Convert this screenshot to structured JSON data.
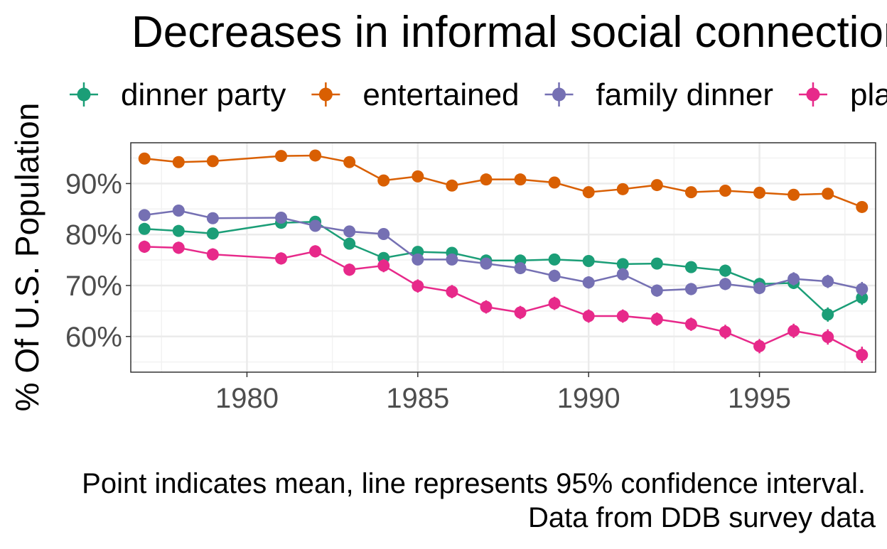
{
  "chart_data": {
    "type": "line",
    "title": "Decreases in informal social connections",
    "xlabel": "",
    "ylabel": "% Of U.S. Population",
    "caption": "Point indicates mean, line represents 95% confidence interval.",
    "caption_line2": "Data from DDB survey data",
    "xlim": [
      1976.6,
      1998.4
    ],
    "ylim": [
      53,
      98
    ],
    "x_ticks": [
      1980,
      1985,
      1990,
      1995
    ],
    "y_ticks": [
      60,
      70,
      80,
      90
    ],
    "y_tick_format": "percent",
    "grid": true,
    "legend_position": "top",
    "x": [
      1977,
      1978,
      1979,
      1981,
      1982,
      1983,
      1984,
      1985,
      1986,
      1987,
      1988,
      1989,
      1990,
      1991,
      1992,
      1993,
      1994,
      1995,
      1996,
      1997,
      1998
    ],
    "series": [
      {
        "name": "dinner party",
        "color": "#1b9e77",
        "values": [
          81.1,
          80.7,
          80.2,
          82.3,
          82.5,
          78.2,
          75.4,
          76.6,
          76.4,
          74.9,
          74.9,
          75.1,
          74.8,
          74.2,
          74.3,
          73.6,
          72.9,
          70.3,
          70.5,
          64.3,
          67.6
        ],
        "ci": [
          1.0,
          1.0,
          1.0,
          1.0,
          1.0,
          1.1,
          1.1,
          1.1,
          1.1,
          1.1,
          1.1,
          1.1,
          1.1,
          1.1,
          1.1,
          1.1,
          1.2,
          1.2,
          1.2,
          1.4,
          1.4
        ]
      },
      {
        "name": "entertained",
        "color": "#d95f02",
        "values": [
          94.9,
          94.2,
          94.4,
          95.4,
          95.5,
          94.2,
          90.6,
          91.4,
          89.6,
          90.8,
          90.8,
          90.2,
          88.3,
          88.9,
          89.7,
          88.3,
          88.6,
          88.2,
          87.8,
          88.0,
          85.4
        ],
        "ci": [
          0.6,
          0.6,
          0.6,
          0.6,
          0.6,
          0.6,
          0.7,
          0.7,
          0.7,
          0.7,
          0.7,
          0.7,
          0.8,
          0.8,
          0.8,
          0.8,
          0.8,
          0.8,
          0.8,
          0.8,
          0.9
        ]
      },
      {
        "name": "family dinner",
        "color": "#7570b3",
        "values": [
          83.8,
          84.7,
          83.2,
          83.3,
          81.7,
          80.6,
          80.1,
          75.1,
          75.1,
          74.3,
          73.4,
          71.9,
          70.6,
          72.2,
          69.0,
          69.3,
          70.3,
          69.5,
          71.3,
          70.8,
          69.3
        ],
        "ci": [
          1.0,
          1.0,
          1.0,
          1.0,
          1.0,
          1.0,
          1.1,
          1.1,
          1.1,
          1.1,
          1.1,
          1.2,
          1.2,
          1.2,
          1.2,
          1.2,
          1.2,
          1.2,
          1.3,
          1.3,
          1.4
        ]
      },
      {
        "name": "played cards",
        "color": "#e7298a",
        "values": [
          77.6,
          77.4,
          76.1,
          75.3,
          76.7,
          73.1,
          73.9,
          69.9,
          68.8,
          65.8,
          64.7,
          66.5,
          64.0,
          64.0,
          63.4,
          62.4,
          60.9,
          58.1,
          61.1,
          59.9,
          56.4
        ],
        "ci": [
          1.2,
          1.2,
          1.2,
          1.2,
          1.2,
          1.2,
          1.3,
          1.3,
          1.3,
          1.3,
          1.3,
          1.3,
          1.3,
          1.3,
          1.3,
          1.3,
          1.4,
          1.4,
          1.4,
          1.5,
          1.6
        ]
      }
    ]
  }
}
